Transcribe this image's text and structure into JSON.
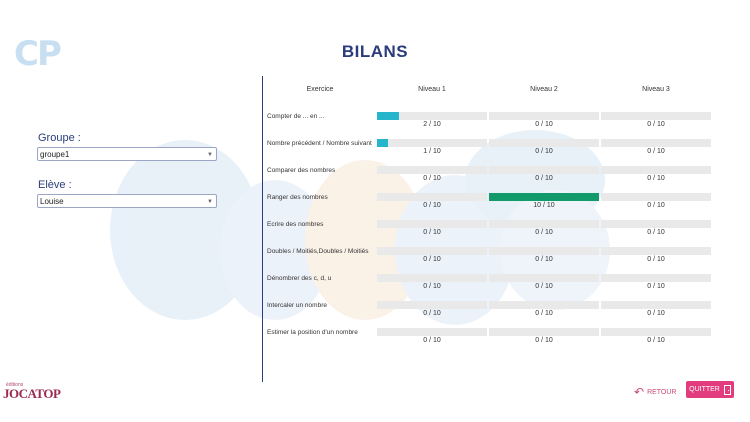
{
  "logo_text": "CP",
  "title": "BILANS",
  "groupe": {
    "label": "Groupe :",
    "value": "groupe1"
  },
  "eleve": {
    "label": "Elève :",
    "value": "Louise"
  },
  "table": {
    "headers": [
      "Exercice",
      "Niveau 1",
      "Niveau 2",
      "Niveau 3"
    ],
    "rows": [
      {
        "name": "Compter de ... en ...",
        "scores": [
          "2 / 10",
          "0 / 10",
          "0 / 10"
        ],
        "levels": [
          0.2,
          0,
          0
        ]
      },
      {
        "name": "Nombre précédent / Nombre suivant",
        "scores": [
          "1 / 10",
          "0 / 10",
          "0 / 10"
        ],
        "levels": [
          0.1,
          0,
          0
        ]
      },
      {
        "name": "Comparer des nombres",
        "scores": [
          "0 / 10",
          "0 / 10",
          "0 / 10"
        ],
        "levels": [
          0,
          0,
          0
        ]
      },
      {
        "name": "Ranger des nombres",
        "scores": [
          "0 / 10",
          "10 / 10",
          "0 / 10"
        ],
        "levels": [
          0,
          1,
          0
        ]
      },
      {
        "name": "Ecrire des nombres",
        "scores": [
          "0 / 10",
          "0 / 10",
          "0 / 10"
        ],
        "levels": [
          0,
          0,
          0
        ]
      },
      {
        "name": "Doubles / Moitiés,Doubles / Moitiés",
        "scores": [
          "0 / 10",
          "0 / 10",
          "0 / 10"
        ],
        "levels": [
          0,
          0,
          0
        ]
      },
      {
        "name": "Dénombrer des c, d, u",
        "scores": [
          "0 / 10",
          "0 / 10",
          "0 / 10"
        ],
        "levels": [
          0,
          0,
          0
        ]
      },
      {
        "name": "Intercaler un nombre",
        "scores": [
          "0 / 10",
          "0 / 10",
          "0 / 10"
        ],
        "levels": [
          0,
          0,
          0
        ]
      },
      {
        "name": "Estimer la position d'un nombre",
        "scores": [
          "0 / 10",
          "0 / 10",
          "0 / 10"
        ],
        "levels": [
          0,
          0,
          0
        ]
      }
    ]
  },
  "colors": {
    "fill_partial": "#27b5cc",
    "fill_complete": "#129a6a",
    "accent": "#e23c7f",
    "title": "#2a3d7a"
  },
  "brand": {
    "small": "éditions",
    "name": "JOCATOP"
  },
  "buttons": {
    "retour": "RETOUR",
    "quitter": "QUITTER"
  }
}
